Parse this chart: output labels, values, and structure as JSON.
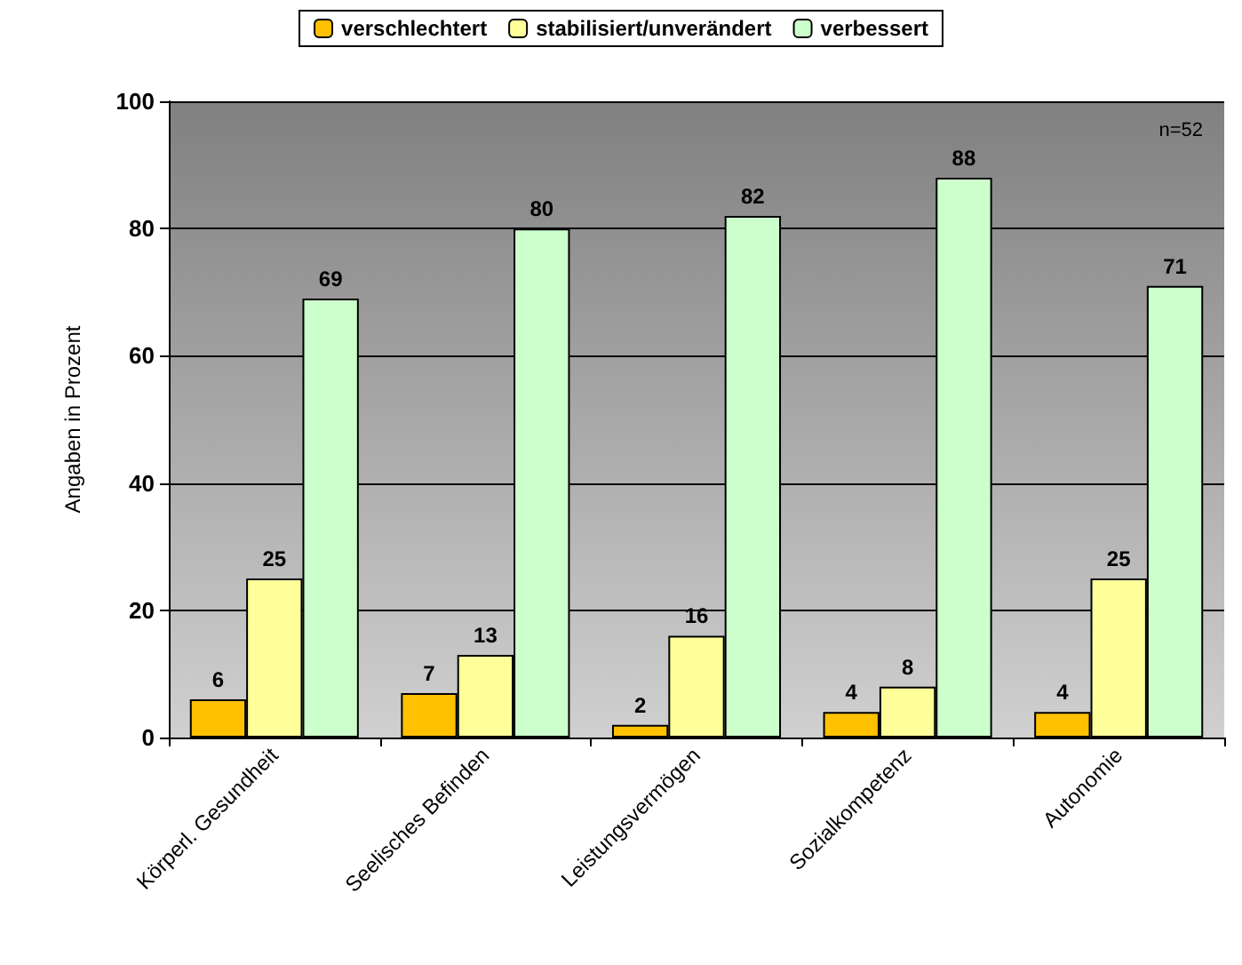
{
  "chart_data": {
    "type": "bar",
    "ylabel": "Angaben in Prozent",
    "categories": [
      "Körperl. Gesundheit",
      "Seelisches Befinden",
      "Leistungsvermögen",
      "Sozialkompetenz",
      "Autonomie"
    ],
    "series": [
      {
        "name": "verschlechtert",
        "color": "#ffc000",
        "values": [
          6,
          7,
          2,
          4,
          4
        ]
      },
      {
        "name": "stabilisiert/unverändert",
        "color": "#ffff99",
        "values": [
          25,
          13,
          16,
          8,
          25
        ]
      },
      {
        "name": "verbessert",
        "color": "#ccffcc",
        "values": [
          69,
          80,
          82,
          88,
          71
        ]
      }
    ],
    "ylim": [
      0,
      100
    ],
    "yticks": [
      0,
      20,
      40,
      60,
      80,
      100
    ],
    "grid": "y",
    "legend": "top",
    "data_labels": true,
    "annotations": [
      "n=52"
    ]
  }
}
